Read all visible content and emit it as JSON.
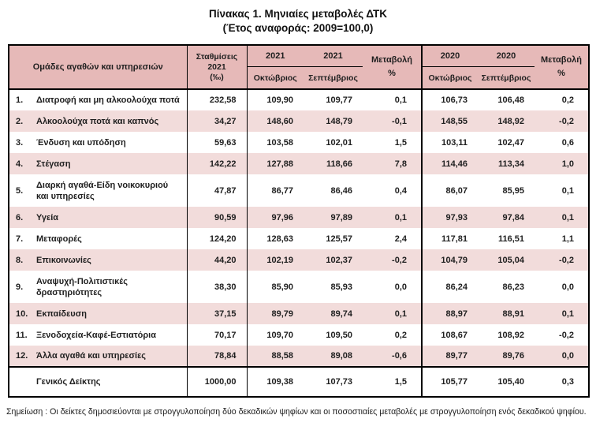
{
  "title": "Πίνακας 1. Μηνιαίες μεταβολές ΔΤΚ",
  "subtitle": "(Έτος αναφοράς: 2009=100,0)",
  "table": {
    "headers": {
      "groups_label": "Ομάδες αγαθών και υπηρεσιών",
      "weights_label": "Σταθμίσεις\n2021\n(‰)",
      "year_2021": "2021",
      "year_2020": "2020",
      "month_october": "Οκτώβριος",
      "month_september": "Σεπτέμβριος",
      "change_label": "Μεταβολή",
      "percent_label": "%"
    },
    "rows": [
      {
        "num": "1.",
        "name": "Διατροφή και μη αλκοολούχα ποτά",
        "weight": "232,58",
        "y21_oct": "109,90",
        "y21_sep": "109,77",
        "chg21": "0,1",
        "y20_oct": "106,73",
        "y20_sep": "106,48",
        "chg20": "0,2"
      },
      {
        "num": "2.",
        "name": "Αλκοολούχα ποτά και καπνός",
        "weight": "34,27",
        "y21_oct": "148,60",
        "y21_sep": "148,79",
        "chg21": "-0,1",
        "y20_oct": "148,55",
        "y20_sep": "148,92",
        "chg20": "-0,2"
      },
      {
        "num": "3.",
        "name": "Ένδυση και υπόδηση",
        "weight": "59,63",
        "y21_oct": "103,58",
        "y21_sep": "102,01",
        "chg21": "1,5",
        "y20_oct": "103,11",
        "y20_sep": "102,47",
        "chg20": "0,6"
      },
      {
        "num": "4.",
        "name": "Στέγαση",
        "weight": "142,22",
        "y21_oct": "127,88",
        "y21_sep": "118,66",
        "chg21": "7,8",
        "y20_oct": "114,46",
        "y20_sep": "113,34",
        "chg20": "1,0"
      },
      {
        "num": "5.",
        "name": "Διαρκή αγαθά-Είδη νοικοκυριού και υπηρεσίες",
        "weight": "47,87",
        "y21_oct": "86,77",
        "y21_sep": "86,46",
        "chg21": "0,4",
        "y20_oct": "86,07",
        "y20_sep": "85,95",
        "chg20": "0,1"
      },
      {
        "num": "6.",
        "name": "Υγεία",
        "weight": "90,59",
        "y21_oct": "97,96",
        "y21_sep": "97,89",
        "chg21": "0,1",
        "y20_oct": "97,93",
        "y20_sep": "97,84",
        "chg20": "0,1"
      },
      {
        "num": "7.",
        "name": "Μεταφορές",
        "weight": "124,20",
        "y21_oct": "128,63",
        "y21_sep": "125,57",
        "chg21": "2,4",
        "y20_oct": "117,81",
        "y20_sep": "116,51",
        "chg20": "1,1"
      },
      {
        "num": "8.",
        "name": "Επικοινωνίες",
        "weight": "44,20",
        "y21_oct": "102,19",
        "y21_sep": "102,37",
        "chg21": "-0,2",
        "y20_oct": "104,79",
        "y20_sep": "105,04",
        "chg20": "-0,2"
      },
      {
        "num": "9.",
        "name": "Αναψυχή-Πολιτιστικές δραστηριότητες",
        "weight": "38,30",
        "y21_oct": "85,90",
        "y21_sep": "85,93",
        "chg21": "0,0",
        "y20_oct": "86,24",
        "y20_sep": "86,23",
        "chg20": "0,0"
      },
      {
        "num": "10.",
        "name": "Εκπαίδευση",
        "weight": "37,15",
        "y21_oct": "89,79",
        "y21_sep": "89,74",
        "chg21": "0,1",
        "y20_oct": "88,97",
        "y20_sep": "88,91",
        "chg20": "0,1"
      },
      {
        "num": "11.",
        "name": "Ξενοδοχεία-Καφέ-Εστιατόρια",
        "weight": "70,17",
        "y21_oct": "109,70",
        "y21_sep": "109,50",
        "chg21": "0,2",
        "y20_oct": "108,67",
        "y20_sep": "108,92",
        "chg20": "-0,2"
      },
      {
        "num": "12.",
        "name": "Άλλα αγαθά και υπηρεσίες",
        "weight": "78,84",
        "y21_oct": "88,58",
        "y21_sep": "89,08",
        "chg21": "-0,6",
        "y20_oct": "89,77",
        "y20_sep": "89,76",
        "chg20": "0,0"
      }
    ],
    "footer": {
      "name": "Γενικός Δείκτης",
      "weight": "1000,00",
      "y21_oct": "109,38",
      "y21_sep": "107,73",
      "chg21": "1,5",
      "y20_oct": "105,77",
      "y20_sep": "105,40",
      "chg20": "0,3"
    }
  },
  "note": "Σημείωση : Οι δείκτες δημοσιεύονται με στρογγυλοποίηση δύο δεκαδικών ψηφίων και οι ποσοστιαίες μεταβολές με στρογγυλοποίηση ενός δεκαδικού ψηφίου.",
  "colors": {
    "header_bg": "#e6b9b8",
    "alt_row_bg": "#f2dcdb",
    "border": "#000000"
  }
}
